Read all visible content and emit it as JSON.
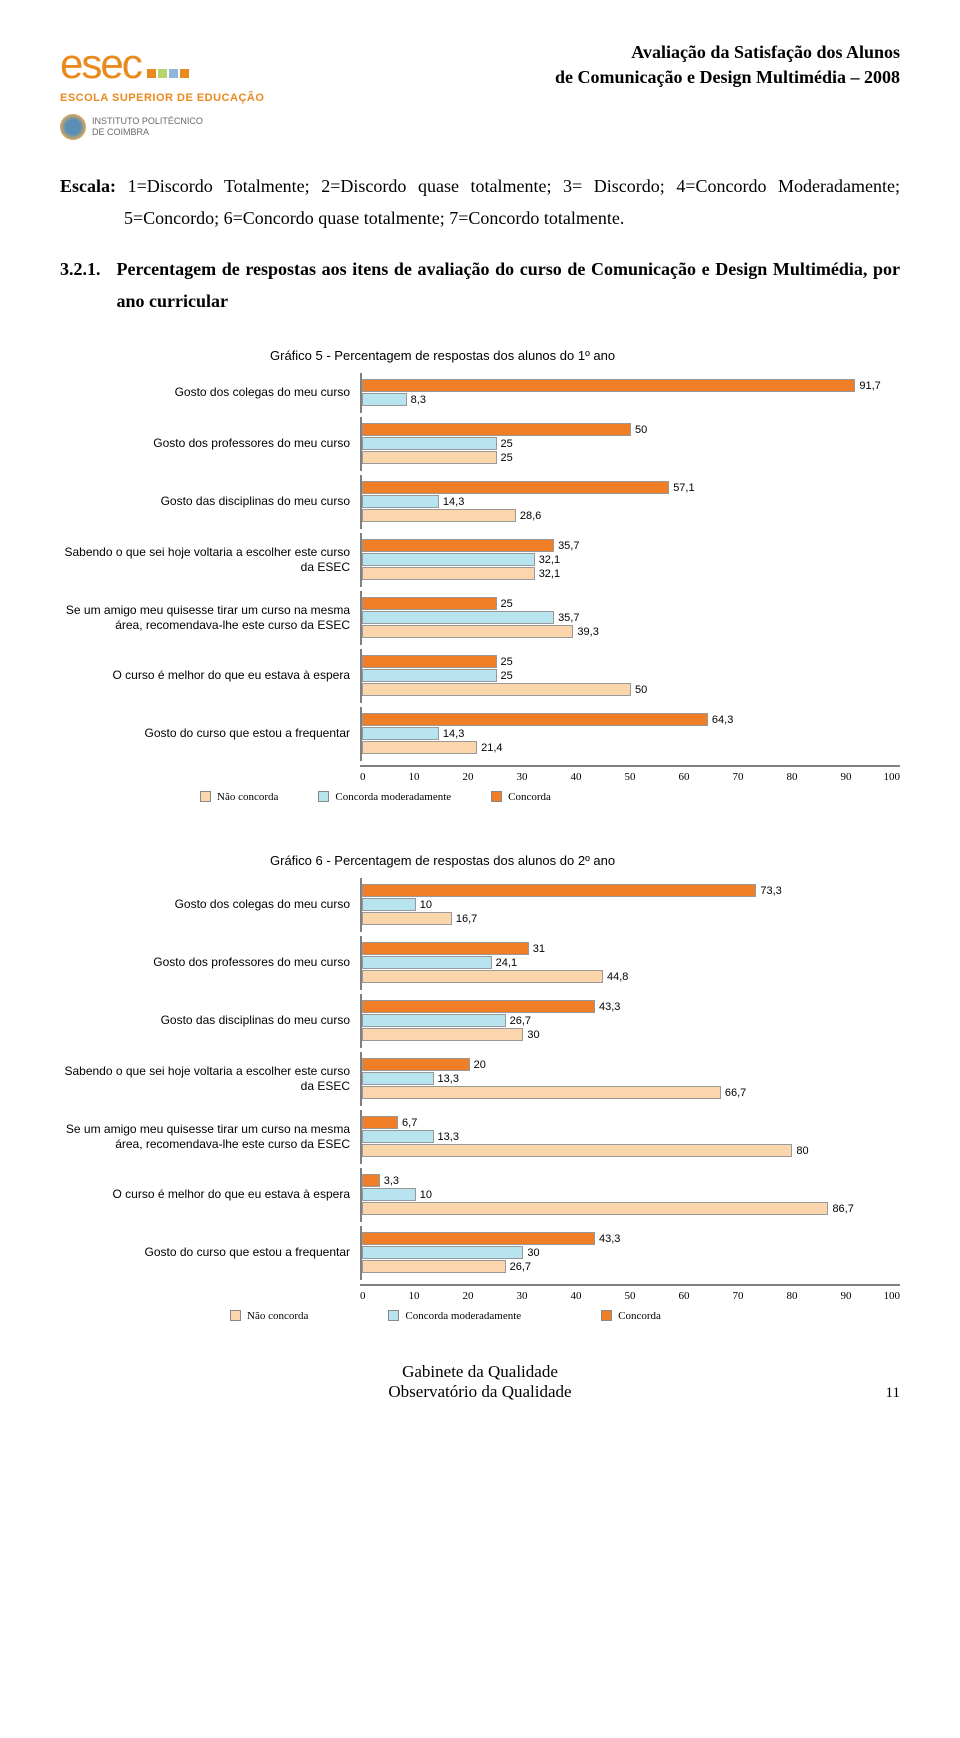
{
  "header": {
    "logo_text": "esec",
    "logo_subtitle": "ESCOLA SUPERIOR DE EDUCAÇÃO",
    "ipc_line1": "INSTITUTO POLITÉCNICO",
    "ipc_line2": "DE COIMBRA",
    "title_line1": "Avaliação da Satisfação dos Alunos",
    "title_line2": "de  Comunicação e Design Multimédia – 2008",
    "square_colors": [
      "#e98a1e",
      "#b5d56a",
      "#8eb8d9",
      "#e98a1e"
    ]
  },
  "body": {
    "scale_label": "Escala:",
    "scale_text": "1=Discordo Totalmente; 2=Discordo quase totalmente; 3= Discordo; 4=Concordo Moderadamente; 5=Concordo; 6=Concordo quase totalmente; 7=Concordo totalmente.",
    "section_num": "3.2.1.",
    "section_text": "Percentagem de respostas aos itens de avaliação do curso de Comunicação e Design Multimédia, por ano curricular"
  },
  "chart5": {
    "title": "Gráfico 5 -  Percentagem de respostas dos alunos do 1º ano",
    "x_max": 100,
    "x_ticks": [
      "0",
      "10",
      "20",
      "30",
      "40",
      "50",
      "60",
      "70",
      "80",
      "90",
      "100"
    ],
    "colors": {
      "concorda": "#f07e26",
      "moderada": "#b8e4f0",
      "nao": "#fbd5ab"
    },
    "rows": [
      {
        "label": "Gosto dos colegas do meu curso",
        "bars": [
          {
            "c": "concorda",
            "v": 91.7,
            "t": "91,7"
          },
          {
            "c": "moderada",
            "v": 8.3,
            "t": "8,3"
          }
        ]
      },
      {
        "label": "Gosto dos professores do meu curso",
        "bars": [
          {
            "c": "concorda",
            "v": 50,
            "t": "50"
          },
          {
            "c": "moderada",
            "v": 25,
            "t": "25"
          },
          {
            "c": "nao",
            "v": 25,
            "t": "25"
          }
        ]
      },
      {
        "label": "Gosto das disciplinas do meu curso",
        "bars": [
          {
            "c": "concorda",
            "v": 57.1,
            "t": "57,1"
          },
          {
            "c": "moderada",
            "v": 14.3,
            "t": "14,3"
          },
          {
            "c": "nao",
            "v": 28.6,
            "t": "28,6"
          }
        ]
      },
      {
        "label": "Sabendo o que sei hoje voltaria a escolher este curso da ESEC",
        "bars": [
          {
            "c": "concorda",
            "v": 35.7,
            "t": "35,7"
          },
          {
            "c": "moderada",
            "v": 32.1,
            "t": "32,1"
          },
          {
            "c": "nao",
            "v": 32.1,
            "t": "32,1"
          }
        ]
      },
      {
        "label": "Se um amigo meu quisesse tirar um curso na mesma área, recomendava-lhe este curso da ESEC",
        "bars": [
          {
            "c": "concorda",
            "v": 25,
            "t": "25"
          },
          {
            "c": "moderada",
            "v": 35.7,
            "t": "35,7"
          },
          {
            "c": "nao",
            "v": 39.3,
            "t": "39,3"
          }
        ]
      },
      {
        "label": "O curso é melhor do que eu estava à espera",
        "bars": [
          {
            "c": "concorda",
            "v": 25,
            "t": "25"
          },
          {
            "c": "moderada",
            "v": 25,
            "t": "25"
          },
          {
            "c": "nao",
            "v": 50,
            "t": "50"
          }
        ]
      },
      {
        "label": "Gosto do curso que estou a frequentar",
        "bars": [
          {
            "c": "concorda",
            "v": 64.3,
            "t": "64,3"
          },
          {
            "c": "moderada",
            "v": 14.3,
            "t": "14,3"
          },
          {
            "c": "nao",
            "v": 21.4,
            "t": "21,4"
          }
        ]
      }
    ],
    "legend": [
      {
        "c": "nao",
        "label": "Não concorda"
      },
      {
        "c": "moderada",
        "label": "Concorda moderadamente"
      },
      {
        "c": "concorda",
        "label": "Concorda"
      }
    ]
  },
  "chart6": {
    "title": "Gráfico 6 -  Percentagem de respostas dos alunos do 2º ano",
    "x_max": 100,
    "x_ticks": [
      "0",
      "10",
      "20",
      "30",
      "40",
      "50",
      "60",
      "70",
      "80",
      "90",
      "100"
    ],
    "colors": {
      "concorda": "#f07e26",
      "moderada": "#b8e4f0",
      "nao": "#fbd5ab"
    },
    "rows": [
      {
        "label": "Gosto dos colegas do meu curso",
        "bars": [
          {
            "c": "concorda",
            "v": 73.3,
            "t": "73,3"
          },
          {
            "c": "moderada",
            "v": 10,
            "t": "10"
          },
          {
            "c": "nao",
            "v": 16.7,
            "t": "16,7"
          }
        ]
      },
      {
        "label": "Gosto dos professores do meu curso",
        "bars": [
          {
            "c": "concorda",
            "v": 31,
            "t": "31"
          },
          {
            "c": "moderada",
            "v": 24.1,
            "t": "24,1"
          },
          {
            "c": "nao",
            "v": 44.8,
            "t": "44,8"
          }
        ]
      },
      {
        "label": "Gosto das disciplinas do meu curso",
        "bars": [
          {
            "c": "concorda",
            "v": 43.3,
            "t": "43,3"
          },
          {
            "c": "moderada",
            "v": 26.7,
            "t": "26,7"
          },
          {
            "c": "nao",
            "v": 30,
            "t": "30"
          }
        ]
      },
      {
        "label": "Sabendo o que sei hoje voltaria a escolher este curso da ESEC",
        "bars": [
          {
            "c": "concorda",
            "v": 20,
            "t": "20"
          },
          {
            "c": "moderada",
            "v": 13.3,
            "t": "13,3"
          },
          {
            "c": "nao",
            "v": 66.7,
            "t": "66,7"
          }
        ]
      },
      {
        "label": "Se um amigo meu quisesse tirar um curso na mesma área, recomendava-lhe este curso da ESEC",
        "bars": [
          {
            "c": "concorda",
            "v": 6.7,
            "t": "6,7"
          },
          {
            "c": "moderada",
            "v": 13.3,
            "t": "13,3"
          },
          {
            "c": "nao",
            "v": 80,
            "t": "80"
          }
        ]
      },
      {
        "label": "O curso é melhor do que eu estava à espera",
        "bars": [
          {
            "c": "concorda",
            "v": 3.3,
            "t": "3,3"
          },
          {
            "c": "moderada",
            "v": 10,
            "t": "10"
          },
          {
            "c": "nao",
            "v": 86.7,
            "t": "86,7"
          }
        ]
      },
      {
        "label": "Gosto do curso que estou a frequentar",
        "bars": [
          {
            "c": "concorda",
            "v": 43.3,
            "t": "43,3"
          },
          {
            "c": "moderada",
            "v": 30,
            "t": "30"
          },
          {
            "c": "nao",
            "v": 26.7,
            "t": "26,7"
          }
        ]
      }
    ],
    "legend": [
      {
        "c": "nao",
        "label": "Não concorda"
      },
      {
        "c": "moderada",
        "label": "Concorda moderadamente"
      },
      {
        "c": "concorda",
        "label": "Concorda"
      }
    ]
  },
  "footer": {
    "line1": "Gabinete da Qualidade",
    "line2": "Observatório da Qualidade",
    "page": "11"
  }
}
